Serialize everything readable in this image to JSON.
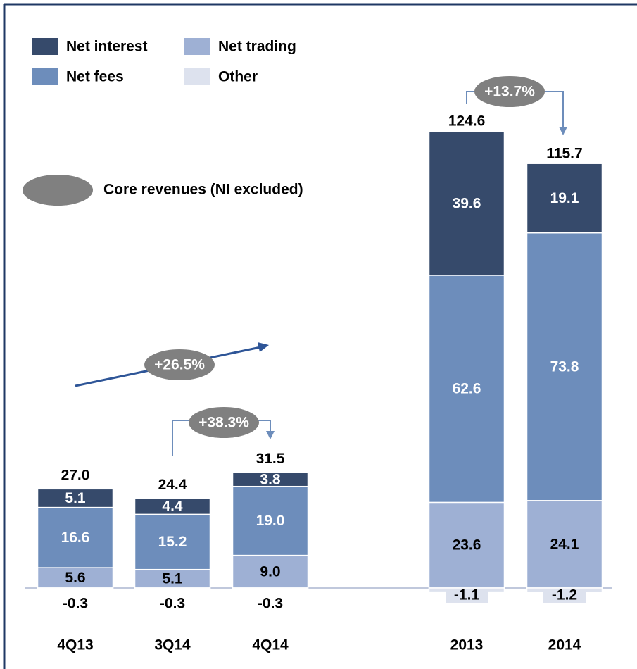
{
  "chart_data": {
    "type": "stacked_bar",
    "categories": [
      "4Q13",
      "3Q14",
      "4Q14",
      "2013",
      "2014"
    ],
    "series": [
      {
        "name": "Net trading",
        "color": "#9eb0d4",
        "values": [
          5.6,
          5.1,
          9.0,
          23.6,
          24.1
        ],
        "value_labels": [
          "5.6",
          "5.1",
          "9.0",
          "23.6",
          "24.1"
        ]
      },
      {
        "name": "Net fees",
        "color": "#6d8dbb",
        "values": [
          16.6,
          15.2,
          19.0,
          62.6,
          73.8
        ],
        "value_labels": [
          "16.6",
          "15.2",
          "19.0",
          "62.6",
          "73.8"
        ]
      },
      {
        "name": "Net interest",
        "color": "#364a6b",
        "values": [
          5.1,
          4.4,
          3.8,
          39.6,
          19.1
        ],
        "value_labels": [
          "5.1",
          "4.4",
          "3.8",
          "39.6",
          "19.1"
        ]
      },
      {
        "name": "Other",
        "color": "#dde2ee",
        "values": [
          -0.3,
          -0.3,
          -0.3,
          -1.1,
          -1.2
        ],
        "value_labels": [
          "-0.3",
          "-0.3",
          "-0.3",
          "-1.1",
          "-1.2"
        ]
      }
    ],
    "totals": [
      27.0,
      24.4,
      31.5,
      124.6,
      115.7
    ],
    "total_labels": [
      "27.0",
      "24.4",
      "31.5",
      "124.6",
      "115.7"
    ],
    "ylim": [
      -20,
      125
    ],
    "annotations": [
      "+26.5%",
      "+38.3%",
      "+13.7%"
    ],
    "core_revenues_label": "Core revenues (NI excluded)"
  }
}
